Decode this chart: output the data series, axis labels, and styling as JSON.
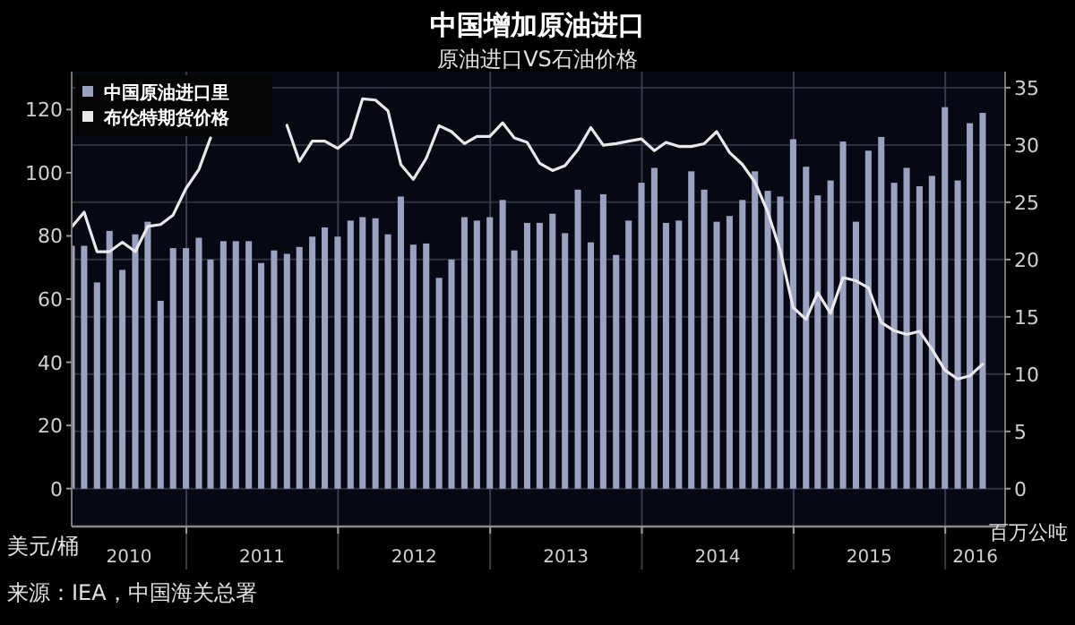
{
  "chart_data": {
    "type": "bar",
    "title": "中国增加原油进口",
    "subtitle": "原油进口VS石油价格",
    "ylabel": "美元/桶",
    "y2label": "百万公吨",
    "annotations": [
      "来源：IEA，中国海关总署"
    ],
    "x": [
      "2010-03-31",
      "2010-04-30",
      "2010-05-31",
      "2010-06-30",
      "2010-07-31",
      "2010-08-31",
      "2010-09-30",
      "2010-10-31",
      "2010-11-30",
      "2010-12-31",
      "2011-01-31",
      "2011-02-28",
      "2011-03-31",
      "2011-04-30",
      "2011-05-31",
      "2011-06-30",
      "2011-07-31",
      "2011-08-31",
      "2011-09-30",
      "2011-10-31",
      "2011-11-30",
      "2011-12-31",
      "2012-01-31",
      "2012-02-29",
      "2012-03-31",
      "2012-04-30",
      "2012-05-31",
      "2012-06-30",
      "2012-07-31",
      "2012-08-31",
      "2012-09-30",
      "2012-10-31",
      "2012-11-30",
      "2012-12-31",
      "2013-01-31",
      "2013-02-28",
      "2013-03-31",
      "2013-04-30",
      "2013-05-31",
      "2013-06-30",
      "2013-07-31",
      "2013-08-31",
      "2013-09-30",
      "2013-10-31",
      "2013-11-30",
      "2013-12-31",
      "2014-01-31",
      "2014-02-28",
      "2014-03-31",
      "2014-04-30",
      "2014-05-31",
      "2014-06-30",
      "2014-07-31",
      "2014-08-31",
      "2014-09-30",
      "2014-10-31",
      "2014-11-30",
      "2014-12-31",
      "2015-01-31",
      "2015-02-28",
      "2015-03-31",
      "2015-04-30",
      "2015-05-31",
      "2015-06-30",
      "2015-07-31",
      "2015-08-31",
      "2015-09-30",
      "2015-10-31",
      "2015-11-30",
      "2015-12-31",
      "2016-01-31",
      "2016-02-29",
      "2016-03-31"
    ],
    "series": [
      {
        "name": "中国原油进口里",
        "axis": "y2",
        "color": "#9aa2c2",
        "values": [
          21.2,
          21.2,
          18.0,
          22.5,
          19.1,
          22.2,
          23.3,
          16.4,
          21.0,
          21.0,
          21.9,
          20.0,
          21.6,
          21.6,
          21.6,
          19.7,
          20.8,
          20.5,
          21.1,
          22.0,
          22.8,
          22.0,
          23.4,
          23.7,
          23.6,
          22.2,
          25.5,
          21.3,
          21.4,
          18.4,
          20.0,
          23.7,
          23.4,
          23.7,
          25.2,
          20.8,
          23.2,
          23.2,
          24.0,
          22.3,
          26.1,
          21.5,
          25.7,
          20.4,
          23.4,
          26.7,
          28.0,
          23.2,
          23.4,
          27.7,
          26.1,
          23.3,
          23.8,
          25.2,
          27.7,
          26.0,
          25.5,
          30.5,
          28.1,
          25.6,
          26.9,
          30.3,
          23.3,
          29.5,
          30.7,
          26.7,
          28.0,
          26.4,
          27.3,
          33.3,
          26.9,
          31.9,
          32.8
        ]
      },
      {
        "name": "布伦特期货价格",
        "type": "line",
        "axis": "y",
        "color": "#e8e8e8",
        "values": [
          82.8,
          87.5,
          75,
          75,
          78,
          75,
          83,
          83.6,
          86.6,
          95,
          101,
          111,
          null,
          null,
          null,
          null,
          null,
          115,
          103.6,
          110,
          110,
          107.7,
          111,
          123.4,
          123,
          119.6,
          102.6,
          97.9,
          104.5,
          114.9,
          113,
          109.2,
          111.5,
          111.5,
          115.8,
          111,
          109.6,
          103,
          100.7,
          102.2,
          107.3,
          114.3,
          108.7,
          109.2,
          110,
          110.7,
          107,
          109.6,
          108.3,
          108.3,
          109.2,
          113,
          106.4,
          102.6,
          97,
          87.5,
          75.3,
          57.3,
          53.6,
          62,
          55.5,
          66.8,
          65.8,
          63.6,
          52.6,
          50,
          48.8,
          49.8,
          44.1,
          37.5,
          34.7,
          35.7,
          39.4
        ]
      }
    ],
    "xlim": [
      "2010-03-31",
      "2016-05-24"
    ],
    "xticks": [
      {
        "value": "2011-01-01",
        "label": null
      },
      {
        "value": "2012-01-01",
        "label": null
      },
      {
        "value": "2013-01-01",
        "label": null
      },
      {
        "value": "2014-01-01",
        "label": null
      },
      {
        "value": "2015-01-01",
        "label": null
      },
      {
        "value": "2016-01-01",
        "label": null
      },
      {
        "value": "2010-08-16",
        "label": "2010"
      },
      {
        "value": "2011-07-02",
        "label": "2011"
      },
      {
        "value": "2012-07-02",
        "label": "2012"
      },
      {
        "value": "2013-07-02",
        "label": "2013"
      },
      {
        "value": "2014-07-02",
        "label": "2014"
      },
      {
        "value": "2015-07-02",
        "label": "2015"
      },
      {
        "value": "2016-03-13",
        "label": "2016"
      }
    ],
    "ylim": [
      -12,
      132
    ],
    "yticks": [
      0,
      20,
      40,
      60,
      80,
      100,
      120
    ],
    "y2lim": [
      -3.3,
      36.4
    ],
    "y2ticks": [
      0,
      5,
      10,
      15,
      20,
      25,
      30,
      35
    ],
    "grid": true,
    "legend": "top left",
    "marker": "none",
    "line_style": "solid"
  }
}
